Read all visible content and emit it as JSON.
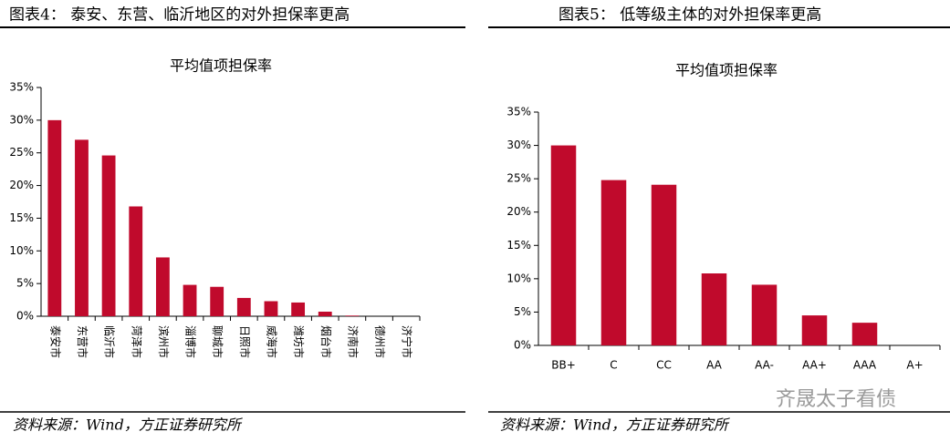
{
  "captions": [
    "图表4：   泰安、东营、临沂地区的对外担保率更高",
    "图表5：   低等级主体的对外担保率更高"
  ],
  "sources": [
    "资料来源：Wind，方正证券研究所",
    "资料来源：Wind，方正证券研究所"
  ],
  "watermark": "齐晟太子看债",
  "chart_data": [
    {
      "type": "bar",
      "title": "平均值项担保率",
      "color": "#c00a2c",
      "label_rotation": "vertical",
      "categories": [
        "泰安市",
        "东营市",
        "临沂市",
        "菏泽市",
        "滨州市",
        "淄博市",
        "聊城市",
        "日照市",
        "威海市",
        "潍坊市",
        "烟台市",
        "济南市",
        "德州市",
        "济宁市"
      ],
      "values": [
        30,
        27,
        24.6,
        16.8,
        9,
        4.8,
        4.5,
        2.8,
        2.3,
        2.1,
        0.7,
        0.1,
        0,
        0
      ],
      "ylim": [
        0,
        35
      ],
      "yticks": [
        {
          "value": 0,
          "label": "0%"
        },
        {
          "value": 5,
          "label": "5%"
        },
        {
          "value": 10,
          "label": "10%"
        },
        {
          "value": 15,
          "label": "15%"
        },
        {
          "value": 20,
          "label": "20%"
        },
        {
          "value": 25,
          "label": "25%"
        },
        {
          "value": 30,
          "label": "30%"
        },
        {
          "value": 35,
          "label": "35%"
        }
      ]
    },
    {
      "type": "bar",
      "title": "平均值项担保率",
      "color": "#c00a2c",
      "label_rotation": "horizontal",
      "categories": [
        "BB+",
        "C",
        "CC",
        "AA",
        "AA-",
        "AA+",
        "AAA",
        "A+"
      ],
      "values": [
        30,
        24.8,
        24.1,
        10.8,
        9.1,
        4.5,
        3.4,
        0
      ],
      "ylim": [
        0,
        35
      ],
      "yticks": [
        {
          "value": 0,
          "label": "0%"
        },
        {
          "value": 5,
          "label": "5%"
        },
        {
          "value": 10,
          "label": "10%"
        },
        {
          "value": 15,
          "label": "15%"
        },
        {
          "value": 20,
          "label": "20%"
        },
        {
          "value": 25,
          "label": "25%"
        },
        {
          "value": 30,
          "label": "30%"
        },
        {
          "value": 35,
          "label": "35%"
        }
      ]
    }
  ]
}
